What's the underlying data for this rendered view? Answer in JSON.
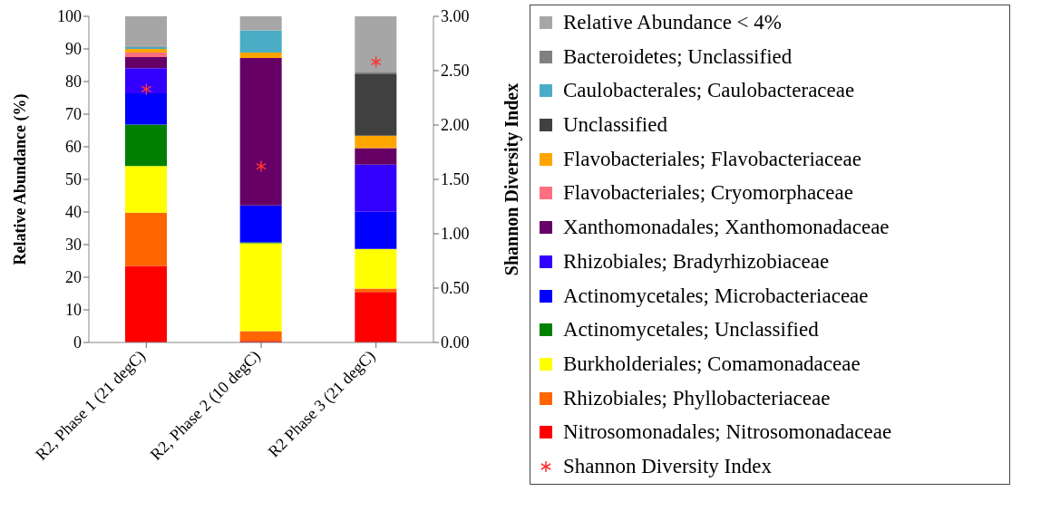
{
  "chart_data": {
    "type": "bar",
    "stacked": true,
    "ylabel": "Relative Abundance (%)",
    "y2label": "Shannon Diversity Index",
    "categories": [
      "R2, Phase 1 (21 degC)",
      "R2, Phase 2 (10 degC)",
      "R2 Phase 3 (21 degC)"
    ],
    "ylim": [
      0,
      100
    ],
    "yticks": [
      0,
      10,
      20,
      30,
      40,
      50,
      60,
      70,
      80,
      90,
      100
    ],
    "y2lim": [
      0,
      3
    ],
    "y2ticks": [
      {
        "value": 0,
        "label": "0.00"
      },
      {
        "value": 0.5,
        "label": "0.50"
      },
      {
        "value": 1,
        "label": "1.00"
      },
      {
        "value": 1.5,
        "label": "1.50"
      },
      {
        "value": 2,
        "label": "2.00"
      },
      {
        "value": 2.5,
        "label": "2.50"
      },
      {
        "value": 3,
        "label": "3.00"
      }
    ],
    "legend": "right",
    "series": [
      {
        "name": "Nitrosomonadales; Nitrosomonadaceae",
        "color": "#ff0000",
        "values": [
          23.5,
          0.5,
          15.5
        ]
      },
      {
        "name": "Rhizobiales; Phyllobacteriaceae",
        "color": "#ff6600",
        "values": [
          16.3,
          3.0,
          1.0
        ]
      },
      {
        "name": "Burkholderiales; Comamonadaceae",
        "color": "#ffff00",
        "values": [
          14.3,
          26.9,
          12.2
        ]
      },
      {
        "name": "Actinomycetales; Unclassified",
        "color": "#008000",
        "values": [
          12.7,
          0.3,
          0
        ]
      },
      {
        "name": "Actinomycetales; Microbacteriaceae",
        "color": "#0000ff",
        "values": [
          9.6,
          11.3,
          11.4
        ]
      },
      {
        "name": "Rhizobiales; Bradyrhizobiaceae",
        "color": "#3300ff",
        "values": [
          7.7,
          0,
          14.4
        ]
      },
      {
        "name": "Xanthomonadales; Xanthomonadaceae",
        "color": "#660066",
        "values": [
          3.4,
          45.2,
          5.1
        ]
      },
      {
        "name": "Flavobacteriales; Cryomorphaceae",
        "color": "#ff6f7f",
        "values": [
          1.4,
          0,
          0
        ]
      },
      {
        "name": "Flavobacteriales; Flavobacteriaceae",
        "color": "#ffa500",
        "values": [
          1.1,
          1.7,
          3.8
        ]
      },
      {
        "name": "Unclassified",
        "color": "#404040",
        "values": [
          0,
          0,
          19.0
        ]
      },
      {
        "name": "Caulobacterales; Caulobacteraceae",
        "color": "#4bacc6",
        "values": [
          0.6,
          6.8,
          0
        ]
      },
      {
        "name": "Bacteroidetes; Unclassified",
        "color": "#808080",
        "values": [
          0.3,
          0,
          0.6
        ]
      },
      {
        "name": "Relative Abundance < 4%",
        "color": "#a6a6a6",
        "values": [
          9.1,
          4.3,
          17.0
        ]
      },
      {
        "name": "Shannon Diversity Index",
        "type": "scatter",
        "axis": "y2",
        "marker": "cross",
        "color": "#ff3333",
        "values": [
          2.33,
          1.62,
          2.58
        ]
      }
    ]
  }
}
